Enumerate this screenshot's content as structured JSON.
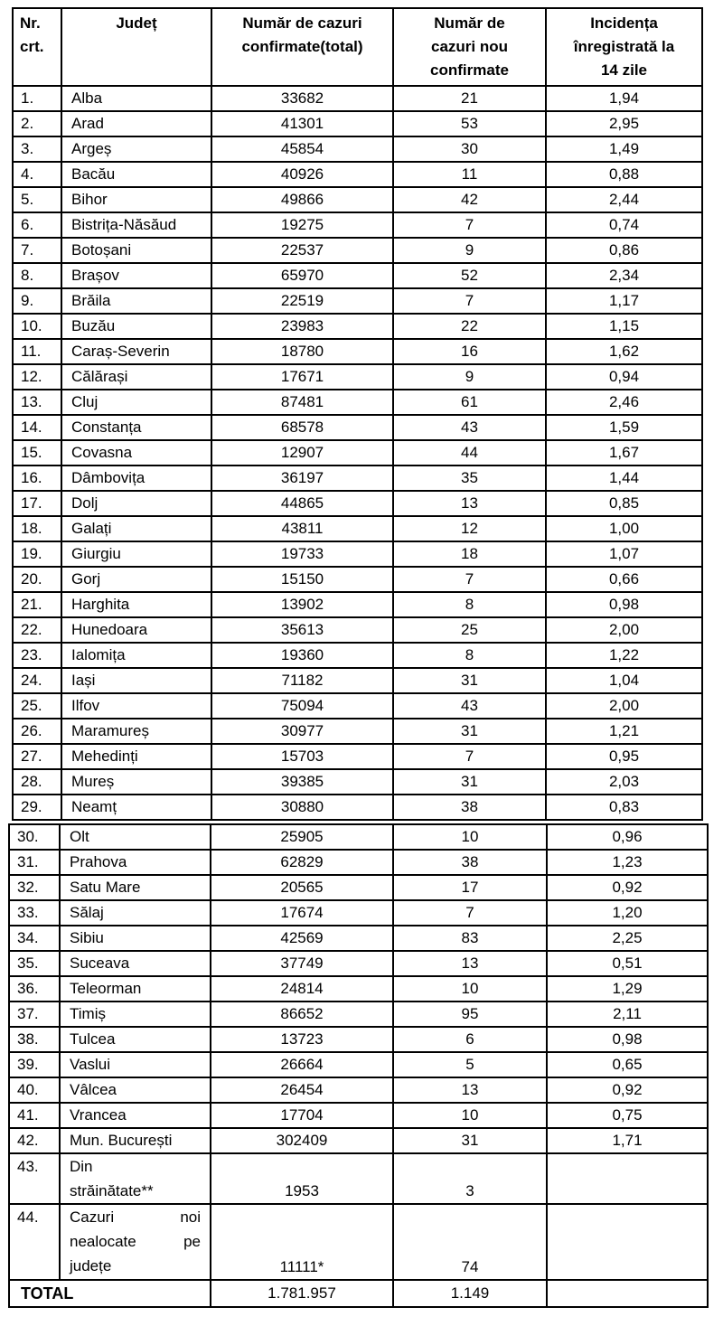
{
  "table": {
    "header": {
      "col1": "Nr.\ncrt.",
      "col2": "Județ",
      "col3": "Număr de cazuri\nconfirmate(total)",
      "col4": "Număr de\ncazuri nou\nconfirmate",
      "col5": "Incidența\nînregistrată la\n14 zile"
    },
    "rows": [
      {
        "nr": "1.",
        "judet": "Alba",
        "total": "33682",
        "nou": "21",
        "incidenta": "1,94"
      },
      {
        "nr": "2.",
        "judet": "Arad",
        "total": "41301",
        "nou": "53",
        "incidenta": "2,95"
      },
      {
        "nr": "3.",
        "judet": "Argeș",
        "total": "45854",
        "nou": "30",
        "incidenta": "1,49"
      },
      {
        "nr": "4.",
        "judet": "Bacău",
        "total": "40926",
        "nou": "11",
        "incidenta": "0,88"
      },
      {
        "nr": "5.",
        "judet": "Bihor",
        "total": "49866",
        "nou": "42",
        "incidenta": "2,44"
      },
      {
        "nr": "6.",
        "judet": "Bistrița-Năsăud",
        "total": "19275",
        "nou": "7",
        "incidenta": "0,74"
      },
      {
        "nr": "7.",
        "judet": "Botoșani",
        "total": "22537",
        "nou": "9",
        "incidenta": "0,86"
      },
      {
        "nr": "8.",
        "judet": "Brașov",
        "total": "65970",
        "nou": "52",
        "incidenta": "2,34"
      },
      {
        "nr": "9.",
        "judet": "Brăila",
        "total": "22519",
        "nou": "7",
        "incidenta": "1,17"
      },
      {
        "nr": "10.",
        "judet": "Buzău",
        "total": "23983",
        "nou": "22",
        "incidenta": "1,15"
      },
      {
        "nr": "11.",
        "judet": "Caraș-Severin",
        "total": "18780",
        "nou": "16",
        "incidenta": "1,62"
      },
      {
        "nr": "12.",
        "judet": "Călărași",
        "total": "17671",
        "nou": "9",
        "incidenta": "0,94"
      },
      {
        "nr": "13.",
        "judet": "Cluj",
        "total": "87481",
        "nou": "61",
        "incidenta": "2,46"
      },
      {
        "nr": "14.",
        "judet": "Constanța",
        "total": "68578",
        "nou": "43",
        "incidenta": "1,59"
      },
      {
        "nr": "15.",
        "judet": "Covasna",
        "total": "12907",
        "nou": "44",
        "incidenta": "1,67"
      },
      {
        "nr": "16.",
        "judet": "Dâmbovița",
        "total": "36197",
        "nou": "35",
        "incidenta": "1,44"
      },
      {
        "nr": "17.",
        "judet": "Dolj",
        "total": "44865",
        "nou": "13",
        "incidenta": "0,85"
      },
      {
        "nr": "18.",
        "judet": "Galați",
        "total": "43811",
        "nou": "12",
        "incidenta": "1,00"
      },
      {
        "nr": "19.",
        "judet": "Giurgiu",
        "total": "19733",
        "nou": "18",
        "incidenta": "1,07"
      },
      {
        "nr": "20.",
        "judet": "Gorj",
        "total": "15150",
        "nou": "7",
        "incidenta": "0,66"
      },
      {
        "nr": "21.",
        "judet": "Harghita",
        "total": "13902",
        "nou": "8",
        "incidenta": "0,98"
      },
      {
        "nr": "22.",
        "judet": "Hunedoara",
        "total": "35613",
        "nou": "25",
        "incidenta": "2,00"
      },
      {
        "nr": "23.",
        "judet": "Ialomița",
        "total": "19360",
        "nou": "8",
        "incidenta": "1,22"
      },
      {
        "nr": "24.",
        "judet": "Iași",
        "total": "71182",
        "nou": "31",
        "incidenta": "1,04"
      },
      {
        "nr": "25.",
        "judet": "Ilfov",
        "total": "75094",
        "nou": "43",
        "incidenta": "2,00"
      },
      {
        "nr": "26.",
        "judet": "Maramureș",
        "total": "30977",
        "nou": "31",
        "incidenta": "1,21"
      },
      {
        "nr": "27.",
        "judet": "Mehedinți",
        "total": "15703",
        "nou": "7",
        "incidenta": "0,95"
      },
      {
        "nr": "28.",
        "judet": "Mureș",
        "total": "39385",
        "nou": "31",
        "incidenta": "2,03"
      },
      {
        "nr": "29.",
        "judet": "Neamț",
        "total": "30880",
        "nou": "38",
        "incidenta": "0,83"
      },
      {
        "nr": "30.",
        "judet": "Olt",
        "total": "25905",
        "nou": "10",
        "incidenta": "0,96"
      },
      {
        "nr": "31.",
        "judet": "Prahova",
        "total": "62829",
        "nou": "38",
        "incidenta": "1,23"
      },
      {
        "nr": "32.",
        "judet": "Satu Mare",
        "total": "20565",
        "nou": "17",
        "incidenta": "0,92"
      },
      {
        "nr": "33.",
        "judet": "Sălaj",
        "total": "17674",
        "nou": "7",
        "incidenta": "1,20"
      },
      {
        "nr": "34.",
        "judet": "Sibiu",
        "total": "42569",
        "nou": "83",
        "incidenta": "2,25"
      },
      {
        "nr": "35.",
        "judet": "Suceava",
        "total": "37749",
        "nou": "13",
        "incidenta": "0,51"
      },
      {
        "nr": "36.",
        "judet": "Teleorman",
        "total": "24814",
        "nou": "10",
        "incidenta": "1,29"
      },
      {
        "nr": "37.",
        "judet": "Timiș",
        "total": "86652",
        "nou": "95",
        "incidenta": "2,11"
      },
      {
        "nr": "38.",
        "judet": "Tulcea",
        "total": "13723",
        "nou": "6",
        "incidenta": "0,98"
      },
      {
        "nr": "39.",
        "judet": "Vaslui",
        "total": "26664",
        "nou": "5",
        "incidenta": "0,65"
      },
      {
        "nr": "40.",
        "judet": "Vâlcea",
        "total": "26454",
        "nou": "13",
        "incidenta": "0,92"
      },
      {
        "nr": "41.",
        "judet": "Vrancea",
        "total": "17704",
        "nou": "10",
        "incidenta": "0,75"
      },
      {
        "nr": "42.",
        "judet": "Mun. București",
        "total": "302409",
        "nou": "31",
        "incidenta": "1,71"
      }
    ],
    "special_rows": [
      {
        "nr": "43.",
        "name_lines": [
          [
            "Din",
            ""
          ],
          [
            "străinătate**",
            ""
          ]
        ],
        "total": "1953",
        "nou": "3",
        "incidenta": ""
      },
      {
        "nr": "44.",
        "name_lines": [
          [
            "Cazuri",
            "noi"
          ],
          [
            "nealocate",
            "pe"
          ],
          [
            "județe",
            ""
          ]
        ],
        "total": "11111*",
        "nou": "74",
        "incidenta": ""
      }
    ],
    "total_row": {
      "label": "TOTAL",
      "total": "1.781.957",
      "nou": "1.149",
      "incidenta": ""
    }
  }
}
